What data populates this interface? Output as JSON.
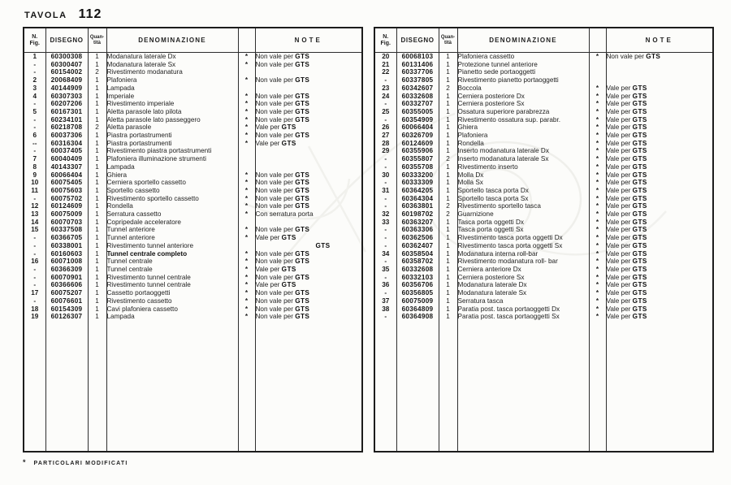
{
  "page": {
    "title_label": "TAVOLA",
    "title_number": "112",
    "footer_marker": "*",
    "footer_text": "PARTICOLARI MODIFICATI"
  },
  "table_headers": {
    "fig_line1": "N.",
    "fig_line2": "Fig.",
    "disegno": "DISEGNO",
    "qty_line1": "Quan-",
    "qty_line2": "tità",
    "denominazione": "DENOMINAZIONE",
    "note": "NOTE"
  },
  "left_table": {
    "rows": [
      {
        "fig": "1",
        "disegno": "60300308",
        "qty": "1",
        "name": "Modanatura laterale Dx",
        "star": "*",
        "note": "Non vale per GTS"
      },
      {
        "fig": "-",
        "disegno": "60300407",
        "qty": "1",
        "name": "Modanatura laterale Sx",
        "star": "*",
        "note": "Non vale per GTS"
      },
      {
        "fig": "-",
        "disegno": "60154002",
        "qty": "2",
        "name": "Rivestimento modanatura",
        "star": "",
        "note": ""
      },
      {
        "fig": "2",
        "disegno": "20068409",
        "qty": "1",
        "name": "Plafoniera",
        "star": "*",
        "note": "Non vale per GTS"
      },
      {
        "fig": "3",
        "disegno": "40144909",
        "qty": "1",
        "name": "Lampada",
        "star": "",
        "note": ""
      },
      {
        "fig": "4",
        "disegno": "60307303",
        "qty": "1",
        "name": "Imperiale",
        "star": "*",
        "note": "Non vale per GTS"
      },
      {
        "fig": "-",
        "disegno": "60207206",
        "qty": "1",
        "name": "Rivestimento imperiale",
        "star": "*",
        "note": "Non vale per GTS"
      },
      {
        "fig": "5",
        "disegno": "60167301",
        "qty": "1",
        "name": "Aletta parasole lato pilota",
        "star": "*",
        "note": "Non vale per GTS"
      },
      {
        "fig": "-",
        "disegno": "60234101",
        "qty": "1",
        "name": "Aletta parasole lato passeggero",
        "star": "*",
        "note": "Non vale per GTS"
      },
      {
        "fig": "-",
        "disegno": "60218708",
        "qty": "2",
        "name": "Aletta parasole",
        "star": "*",
        "note": "Vale per GTS"
      },
      {
        "fig": "6",
        "disegno": "60037306",
        "qty": "1",
        "name": "Piastra portastrumenti",
        "star": "*",
        "note": "Non vale per GTS"
      },
      {
        "fig": "--",
        "disegno": "60316304",
        "qty": "1",
        "name": "Piastra portastrumenti",
        "star": "*",
        "note": "Vale per GTS"
      },
      {
        "fig": "-",
        "disegno": "60037405",
        "qty": "1",
        "name": "Rivestimento piastra portastrumenti",
        "star": "",
        "note": ""
      },
      {
        "fig": "7",
        "disegno": "60040409",
        "qty": "1",
        "name": "Plafoniera illuminazione strumenti",
        "star": "",
        "note": ""
      },
      {
        "fig": "8",
        "disegno": "40143307",
        "qty": "1",
        "name": "Lampada",
        "star": "",
        "note": ""
      },
      {
        "fig": "9",
        "disegno": "60066404",
        "qty": "1",
        "name": "Ghiera",
        "star": "*",
        "note": "Non vale per GTS"
      },
      {
        "fig": "10",
        "disegno": "60075405",
        "qty": "1",
        "name": "Cerniera sportello cassetto",
        "star": "*",
        "note": "Non vale per GTS"
      },
      {
        "fig": "11",
        "disegno": "60075603",
        "qty": "1",
        "name": "Sportello cassetto",
        "star": "*",
        "note": "Non vale per GTS"
      },
      {
        "fig": "-",
        "disegno": "60075702",
        "qty": "1",
        "name": "Rivestimento sportello cassetto",
        "star": "*",
        "note": "Non vale per GTS"
      },
      {
        "fig": "12",
        "disegno": "60124609",
        "qty": "1",
        "name": "Rondella",
        "star": "*",
        "note": "Non vale per GTS"
      },
      {
        "fig": "13",
        "disegno": "60075009",
        "qty": "1",
        "name": "Serratura cassetto",
        "star": "*",
        "note": "Con serratura porta"
      },
      {
        "fig": "14",
        "disegno": "60070703",
        "qty": "1",
        "name": "Copripedale acceleratore",
        "star": "",
        "note": ""
      },
      {
        "fig": "15",
        "disegno": "60337508",
        "qty": "1",
        "name": "Tunnel anteriore",
        "star": "*",
        "note": "Non vale per GTS"
      },
      {
        "fig": "-",
        "disegno": "60366705",
        "qty": "1",
        "name": "Tunnel anteriore",
        "star": "*",
        "note": "Vale per GTS"
      },
      {
        "fig": "-",
        "disegno": "60338001",
        "qty": "1",
        "name": "Rivestimento tunnel anteriore",
        "star": "",
        "note": "GTS"
      },
      {
        "fig": "-",
        "disegno": "60160603",
        "qty": "1",
        "name": "Tunnel centrale completo",
        "star": "*",
        "note": "Non vale per GTS",
        "bold": true
      },
      {
        "fig": "16",
        "disegno": "60071008",
        "qty": "1",
        "name": "Tunnel centrale",
        "star": "*",
        "note": "Non vale per GTS"
      },
      {
        "fig": "-",
        "disegno": "60366309",
        "qty": "1",
        "name": "Tunnel centrale",
        "star": "*",
        "note": "Vale per GTS"
      },
      {
        "fig": "-",
        "disegno": "60070901",
        "qty": "1",
        "name": "Rivestimento tunnel centrale",
        "star": "*",
        "note": "Non vale per GTS"
      },
      {
        "fig": "-",
        "disegno": "60366606",
        "qty": "1",
        "name": "Rivestimento tunnel centrale",
        "star": "*",
        "note": "Vale per GTS"
      },
      {
        "fig": "17",
        "disegno": "60075207",
        "qty": "1",
        "name": "Cassetto portaoggetti",
        "star": "*",
        "note": "Non vale per GTS"
      },
      {
        "fig": "-",
        "disegno": "60076601",
        "qty": "1",
        "name": "Rivestimento cassetto",
        "star": "*",
        "note": "Non vale per GTS"
      },
      {
        "fig": "18",
        "disegno": "60154309",
        "qty": "1",
        "name": "Cavi plafoniera cassetto",
        "star": "*",
        "note": "Non vale per GTS"
      },
      {
        "fig": "19",
        "disegno": "60126307",
        "qty": "1",
        "name": "Lampada",
        "star": "*",
        "note": "Non vale per GTS"
      }
    ]
  },
  "right_table": {
    "rows": [
      {
        "fig": "20",
        "disegno": "60068103",
        "qty": "1",
        "name": "Plafoniera cassetto",
        "star": "*",
        "note": "Non vale per GTS"
      },
      {
        "fig": "21",
        "disegno": "60131406",
        "qty": "1",
        "name": "Protezione tunnel anteriore",
        "star": "",
        "note": ""
      },
      {
        "fig": "22",
        "disegno": "60337706",
        "qty": "1",
        "name": "Pianetto sede portaoggetti",
        "star": "",
        "note": ""
      },
      {
        "fig": "-",
        "disegno": "60337805",
        "qty": "1",
        "name": "Rivestimento pianetto portaoggetti",
        "star": "",
        "note": ""
      },
      {
        "fig": "23",
        "disegno": "60342607",
        "qty": "2",
        "name": "Boccola",
        "star": "*",
        "note": "Vale per GTS"
      },
      {
        "fig": "24",
        "disegno": "60332608",
        "qty": "1",
        "name": "Cerniera posteriore Dx",
        "star": "*",
        "note": "Vale per GTS"
      },
      {
        "fig": "-",
        "disegno": "60332707",
        "qty": "1",
        "name": "Cerniera posteriore Sx",
        "star": "*",
        "note": "Vale per GTS"
      },
      {
        "fig": "25",
        "disegno": "60355005",
        "qty": "1",
        "name": "Ossatura superiore parabrezza",
        "star": "*",
        "note": "Vale per GTS"
      },
      {
        "fig": "-",
        "disegno": "60354909",
        "qty": "1",
        "name": "Rivestimento ossatura sup. parabr.",
        "star": "*",
        "note": "Vale per GTS"
      },
      {
        "fig": "26",
        "disegno": "60066404",
        "qty": "1",
        "name": "Ghiera",
        "star": "*",
        "note": "Vale per GTS"
      },
      {
        "fig": "27",
        "disegno": "60326709",
        "qty": "1",
        "name": "Plafoniera",
        "star": "*",
        "note": "Vale per GTS"
      },
      {
        "fig": "28",
        "disegno": "60124609",
        "qty": "1",
        "name": "Rondella",
        "star": "*",
        "note": "Vale per GTS"
      },
      {
        "fig": "29",
        "disegno": "60355906",
        "qty": "1",
        "name": "Inserto modanatura laterale Dx",
        "star": "*",
        "note": "Vale per GTS"
      },
      {
        "fig": "-",
        "disegno": "60355807",
        "qty": "2",
        "name": "Inserto modanatura laterale Sx",
        "star": "*",
        "note": "Vale per GTS"
      },
      {
        "fig": "-",
        "disegno": "60355708",
        "qty": "1",
        "name": "Rivestimento inserto",
        "star": "*",
        "note": "Vale per GTS"
      },
      {
        "fig": "30",
        "disegno": "60333200",
        "qty": "1",
        "name": "Molla Dx",
        "star": "*",
        "note": "Vale per GTS"
      },
      {
        "fig": "-",
        "disegno": "60333309",
        "qty": "1",
        "name": "Molla Sx",
        "star": "*",
        "note": "Vale per GTS"
      },
      {
        "fig": "31",
        "disegno": "60364205",
        "qty": "1",
        "name": "Sportello tasca porta Dx",
        "star": "*",
        "note": "Vale per GTS"
      },
      {
        "fig": "-",
        "disegno": "60364304",
        "qty": "1",
        "name": "Sportello tasca porta Sx",
        "star": "*",
        "note": "Vale per GTS"
      },
      {
        "fig": "-",
        "disegno": "60363801",
        "qty": "2",
        "name": "Rivestimento sportello tasca",
        "star": "*",
        "note": "Vale per GTS"
      },
      {
        "fig": "32",
        "disegno": "60198702",
        "qty": "2",
        "name": "Guarnizione",
        "star": "*",
        "note": "Vale per GTS"
      },
      {
        "fig": "33",
        "disegno": "60363207",
        "qty": "1",
        "name": "Tasca porta oggetti Dx",
        "star": "*",
        "note": "Vale per GTS"
      },
      {
        "fig": "-",
        "disegno": "60363306",
        "qty": "1",
        "name": "Tasca porta oggetti Sx",
        "star": "*",
        "note": "Vale per GTS"
      },
      {
        "fig": "-",
        "disegno": "60362506",
        "qty": "1",
        "name": "Rivestimento tasca porta oggetti Dx",
        "star": "*",
        "note": "Vale per GTS"
      },
      {
        "fig": "-",
        "disegno": "60362407",
        "qty": "1",
        "name": "Rivestimento tasca porta oggetti Sx",
        "star": "*",
        "note": "Vale per GTS"
      },
      {
        "fig": "34",
        "disegno": "60358504",
        "qty": "1",
        "name": "Modanatura interna roll-bar",
        "star": "*",
        "note": "Vale per GTS"
      },
      {
        "fig": "-",
        "disegno": "60358702",
        "qty": "1",
        "name": "Rivestimento modanatura roll- bar",
        "star": "*",
        "note": "Vale per GTS"
      },
      {
        "fig": "35",
        "disegno": "60332608",
        "qty": "1",
        "name": "Cerniera anteriore Dx",
        "star": "*",
        "note": "Vale per GTS"
      },
      {
        "fig": "-",
        "disegno": "60332103",
        "qty": "1",
        "name": "Cerniera posteriore Sx",
        "star": "*",
        "note": "Vale per GTS"
      },
      {
        "fig": "36",
        "disegno": "60356706",
        "qty": "1",
        "name": "Modanatura laterale Dx",
        "star": "*",
        "note": "Vale per GTS"
      },
      {
        "fig": "-",
        "disegno": "60356805",
        "qty": "1",
        "name": "Modanatura laterale Sx",
        "star": "*",
        "note": "Vale per GTS"
      },
      {
        "fig": "37",
        "disegno": "60075009",
        "qty": "1",
        "name": "Serratura tasca",
        "star": "*",
        "note": "Vale per GTS"
      },
      {
        "fig": "38",
        "disegno": "60364809",
        "qty": "1",
        "name": "Paratia post. tasca portaoggetti Dx",
        "star": "*",
        "note": "Vale per GTS"
      },
      {
        "fig": "-",
        "disegno": "60364908",
        "qty": "1",
        "name": "Paratia post. tasca portaoggetti Sx",
        "star": "*",
        "note": "Vale per GTS"
      }
    ]
  }
}
